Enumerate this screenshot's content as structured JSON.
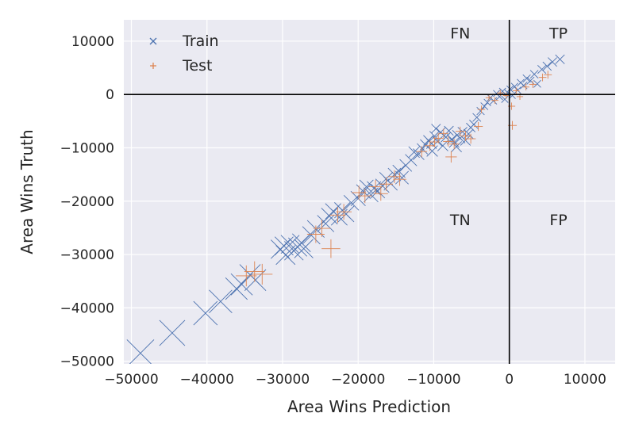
{
  "chart_data": {
    "type": "scatter",
    "title": "",
    "xlabel": "Area Wins Prediction",
    "ylabel": "Area Wins Truth",
    "xlim": [
      -51000,
      14000
    ],
    "ylim": [
      -50500,
      14000
    ],
    "x_ticks": [
      -50000,
      -40000,
      -30000,
      -20000,
      -10000,
      0,
      10000
    ],
    "y_ticks": [
      -50000,
      -40000,
      -30000,
      -20000,
      -10000,
      0,
      10000
    ],
    "x_tick_labels": [
      "−50000",
      "−40000",
      "−30000",
      "−20000",
      "−10000",
      "0",
      "10000"
    ],
    "y_tick_labels": [
      "−50000",
      "−40000",
      "−30000",
      "−20000",
      "−10000",
      "0",
      "10000"
    ],
    "grid": true,
    "legend_position": "top-left",
    "reference_lines": {
      "x": 0,
      "y": 0
    },
    "quadrant_labels": [
      {
        "text": "FN",
        "x": -6500,
        "y": 10500
      },
      {
        "text": "TP",
        "x": 6500,
        "y": 10500
      },
      {
        "text": "TN",
        "x": -6500,
        "y": -24500
      },
      {
        "text": "FP",
        "x": 6500,
        "y": -24500
      }
    ],
    "series": [
      {
        "name": "Train",
        "marker": "x",
        "color": "#4c72b0",
        "points": [
          [
            -48800,
            -48500
          ],
          [
            -44600,
            -44700
          ],
          [
            -40200,
            -41000
          ],
          [
            -38200,
            -38800
          ],
          [
            -36100,
            -36400
          ],
          [
            -35400,
            -35600
          ],
          [
            -34300,
            -33800
          ],
          [
            -33600,
            -34800
          ],
          [
            -30300,
            -29000
          ],
          [
            -29600,
            -30100
          ],
          [
            -29000,
            -28100
          ],
          [
            -28500,
            -29300
          ],
          [
            -28000,
            -28600
          ],
          [
            -27500,
            -27800
          ],
          [
            -27200,
            -28900
          ],
          [
            -29800,
            -28400
          ],
          [
            -26200,
            -26400
          ],
          [
            -25600,
            -25200
          ],
          [
            -24300,
            -24200
          ],
          [
            -23800,
            -22800
          ],
          [
            -23300,
            -21900
          ],
          [
            -22500,
            -23000
          ],
          [
            -22100,
            -21700
          ],
          [
            -21600,
            -22400
          ],
          [
            -20900,
            -20300
          ],
          [
            -20000,
            -19500
          ],
          [
            -19300,
            -18200
          ],
          [
            -18900,
            -17300
          ],
          [
            -18300,
            -18800
          ],
          [
            -17900,
            -17600
          ],
          [
            -17400,
            -18100
          ],
          [
            -16800,
            -17100
          ],
          [
            -16300,
            -15800
          ],
          [
            -15700,
            -16700
          ],
          [
            -15200,
            -15000
          ],
          [
            -14600,
            -14400
          ],
          [
            -14200,
            -15600
          ],
          [
            -13700,
            -13300
          ],
          [
            -13000,
            -12300
          ],
          [
            -12600,
            -10800
          ],
          [
            -12000,
            -11200
          ],
          [
            -11500,
            -10200
          ],
          [
            -11100,
            -9400
          ],
          [
            -10700,
            -8600
          ],
          [
            -10300,
            -9200
          ],
          [
            -9900,
            -7800
          ],
          [
            -9500,
            -8800
          ],
          [
            -9100,
            -7100
          ],
          [
            -8800,
            -9600
          ],
          [
            -8400,
            -8000
          ],
          [
            -8000,
            -6800
          ],
          [
            -7600,
            -8400
          ],
          [
            -7300,
            -9000
          ],
          [
            -6900,
            -7600
          ],
          [
            -6500,
            -8200
          ],
          [
            -6200,
            -7000
          ],
          [
            -5800,
            -8600
          ],
          [
            -5400,
            -7400
          ],
          [
            -5100,
            -6200
          ],
          [
            -4700,
            -5600
          ],
          [
            -4300,
            -4300
          ],
          [
            -3800,
            -3100
          ],
          [
            -3300,
            -2200
          ],
          [
            -2900,
            -1500
          ],
          [
            -2500,
            -600
          ],
          [
            -2100,
            -1200
          ],
          [
            -1700,
            200
          ],
          [
            -1300,
            -400
          ],
          [
            -900,
            600
          ],
          [
            -600,
            -900
          ],
          [
            -200,
            300
          ],
          [
            100,
            1000
          ],
          [
            400,
            -200
          ],
          [
            700,
            1500
          ],
          [
            1100,
            800
          ],
          [
            1500,
            2200
          ],
          [
            1900,
            1700
          ],
          [
            2300,
            3000
          ],
          [
            2800,
            2600
          ],
          [
            3300,
            3800
          ],
          [
            3700,
            2000
          ],
          [
            4300,
            4700
          ],
          [
            5000,
            5300
          ],
          [
            5700,
            6100
          ],
          [
            6700,
            6600
          ],
          [
            -10200,
            -10600
          ],
          [
            -9700,
            -6400
          ],
          [
            -7000,
            -9800
          ]
        ]
      },
      {
        "name": "Test",
        "marker": "+",
        "color": "#dd8452",
        "points": [
          [
            -34800,
            -34000
          ],
          [
            -33700,
            -33200
          ],
          [
            -32700,
            -33700
          ],
          [
            -25600,
            -26200
          ],
          [
            -24800,
            -25100
          ],
          [
            -23600,
            -28900
          ],
          [
            -22700,
            -22600
          ],
          [
            -21900,
            -22000
          ],
          [
            -19900,
            -18400
          ],
          [
            -19100,
            -19000
          ],
          [
            -17700,
            -17300
          ],
          [
            -17000,
            -18600
          ],
          [
            -16300,
            -16800
          ],
          [
            -15200,
            -15400
          ],
          [
            -14500,
            -15900
          ],
          [
            -11600,
            -10700
          ],
          [
            -10500,
            -9600
          ],
          [
            -9900,
            -8900
          ],
          [
            -9400,
            -8200
          ],
          [
            -8700,
            -7300
          ],
          [
            -8100,
            -8800
          ],
          [
            -7700,
            -11700
          ],
          [
            -7300,
            -9300
          ],
          [
            -6500,
            -6900
          ],
          [
            -5800,
            -7800
          ],
          [
            -5100,
            -8300
          ],
          [
            -4100,
            -6000
          ],
          [
            -3700,
            -2800
          ],
          [
            -2700,
            -600
          ],
          [
            -1900,
            -1100
          ],
          [
            -1200,
            300
          ],
          [
            -400,
            -200
          ],
          [
            300,
            -2200
          ],
          [
            900,
            700
          ],
          [
            1400,
            -400
          ],
          [
            2200,
            1400
          ],
          [
            3100,
            1900
          ],
          [
            4400,
            3200
          ],
          [
            5100,
            3700
          ],
          [
            400,
            -5800
          ]
        ]
      }
    ]
  }
}
